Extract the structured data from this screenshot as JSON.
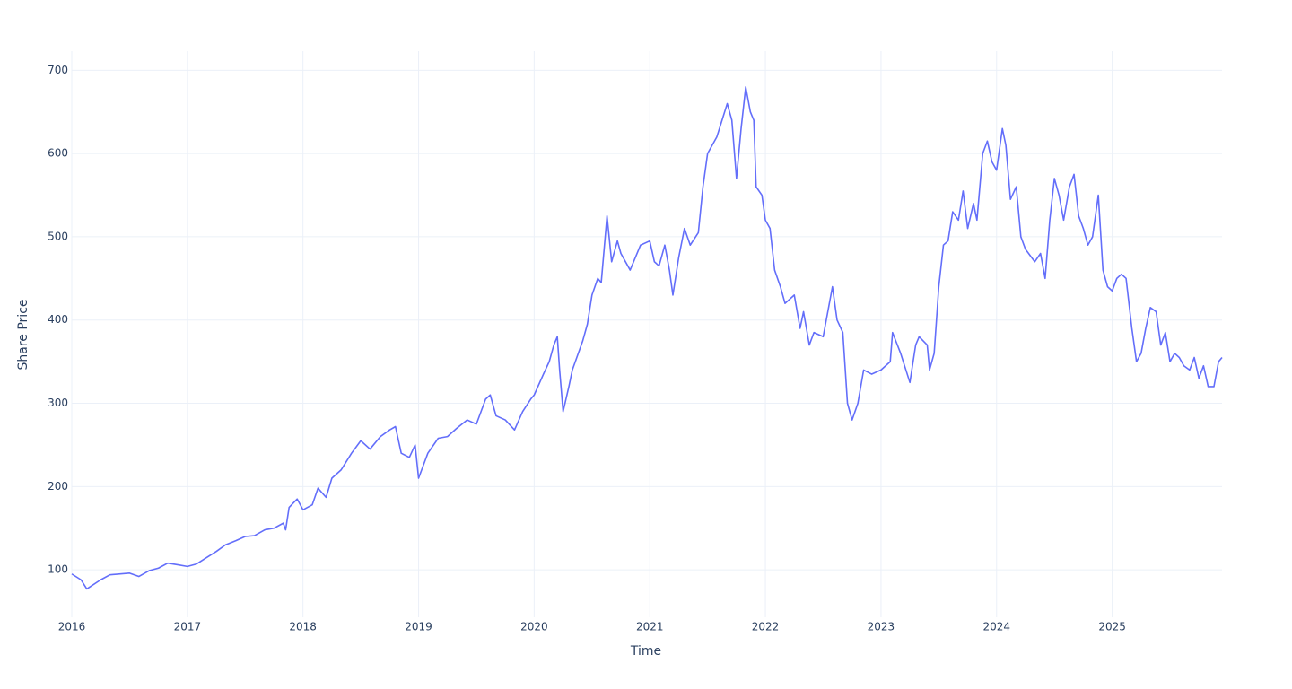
{
  "chart_data": {
    "type": "line",
    "x_label": "Time",
    "y_label": "Share Price",
    "color": "#636efa",
    "grid": true,
    "xlim": [
      2016,
      2025.95
    ],
    "ylim": [
      43,
      723
    ],
    "xticks": [
      2016,
      2017,
      2018,
      2019,
      2020,
      2021,
      2022,
      2023,
      2024,
      2025
    ],
    "yticks": [
      100,
      200,
      300,
      400,
      500,
      600,
      700
    ],
    "x": [
      2016.0,
      2016.08,
      2016.13,
      2016.25,
      2016.33,
      2016.5,
      2016.58,
      2016.67,
      2016.75,
      2016.83,
      2016.92,
      2017.0,
      2017.08,
      2017.17,
      2017.25,
      2017.33,
      2017.42,
      2017.5,
      2017.58,
      2017.67,
      2017.75,
      2017.83,
      2017.85,
      2017.88,
      2017.95,
      2018.0,
      2018.08,
      2018.13,
      2018.2,
      2018.25,
      2018.33,
      2018.42,
      2018.5,
      2018.58,
      2018.67,
      2018.75,
      2018.8,
      2018.85,
      2018.92,
      2018.97,
      2019.0,
      2019.08,
      2019.17,
      2019.25,
      2019.33,
      2019.42,
      2019.5,
      2019.58,
      2019.62,
      2019.67,
      2019.75,
      2019.83,
      2019.9,
      2019.97,
      2020.0,
      2020.08,
      2020.13,
      2020.17,
      2020.2,
      2020.22,
      2020.25,
      2020.3,
      2020.33,
      2020.42,
      2020.46,
      2020.5,
      2020.55,
      2020.58,
      2020.63,
      2020.67,
      2020.72,
      2020.75,
      2020.83,
      2020.92,
      2021.0,
      2021.04,
      2021.08,
      2021.13,
      2021.17,
      2021.2,
      2021.25,
      2021.3,
      2021.35,
      2021.42,
      2021.46,
      2021.5,
      2021.58,
      2021.67,
      2021.71,
      2021.75,
      2021.79,
      2021.83,
      2021.87,
      2021.9,
      2021.92,
      2021.97,
      2022.0,
      2022.04,
      2022.08,
      2022.13,
      2022.17,
      2022.25,
      2022.3,
      2022.33,
      2022.38,
      2022.42,
      2022.5,
      2022.58,
      2022.62,
      2022.67,
      2022.71,
      2022.75,
      2022.8,
      2022.85,
      2022.92,
      2023.0,
      2023.08,
      2023.1,
      2023.17,
      2023.25,
      2023.3,
      2023.33,
      2023.4,
      2023.42,
      2023.46,
      2023.5,
      2023.54,
      2023.58,
      2023.62,
      2023.67,
      2023.71,
      2023.75,
      2023.8,
      2023.83,
      2023.88,
      2023.92,
      2023.96,
      2024.0,
      2024.05,
      2024.08,
      2024.12,
      2024.17,
      2024.21,
      2024.25,
      2024.33,
      2024.38,
      2024.42,
      2024.46,
      2024.5,
      2024.54,
      2024.58,
      2024.63,
      2024.67,
      2024.71,
      2024.75,
      2024.79,
      2024.83,
      2024.88,
      2024.92,
      2024.96,
      2025.0,
      2025.04,
      2025.08,
      2025.12,
      2025.17,
      2025.21,
      2025.25,
      2025.29,
      2025.33,
      2025.38,
      2025.42,
      2025.46,
      2025.5,
      2025.54,
      2025.58,
      2025.62,
      2025.67,
      2025.71,
      2025.75,
      2025.79,
      2025.83,
      2025.88,
      2025.92,
      2025.95
    ],
    "values": [
      95,
      88,
      77,
      88,
      94,
      96,
      92,
      99,
      102,
      108,
      106,
      104,
      107,
      115,
      122,
      130,
      135,
      140,
      141,
      148,
      150,
      156,
      148,
      175,
      185,
      172,
      178,
      198,
      187,
      210,
      220,
      240,
      255,
      245,
      260,
      268,
      272,
      240,
      235,
      250,
      210,
      240,
      258,
      260,
      270,
      280,
      275,
      305,
      310,
      285,
      280,
      268,
      290,
      305,
      310,
      335,
      350,
      370,
      380,
      340,
      290,
      320,
      340,
      375,
      395,
      430,
      450,
      445,
      525,
      470,
      495,
      480,
      460,
      490,
      495,
      470,
      465,
      490,
      460,
      430,
      475,
      510,
      490,
      505,
      560,
      600,
      620,
      660,
      640,
      570,
      630,
      680,
      650,
      640,
      560,
      550,
      520,
      510,
      460,
      440,
      420,
      430,
      390,
      410,
      370,
      385,
      380,
      440,
      400,
      385,
      300,
      280,
      300,
      340,
      335,
      340,
      350,
      385,
      360,
      325,
      370,
      380,
      370,
      340,
      360,
      440,
      490,
      495,
      530,
      520,
      555,
      510,
      540,
      520,
      600,
      615,
      590,
      580,
      630,
      610,
      545,
      560,
      500,
      485,
      470,
      480,
      450,
      520,
      570,
      550,
      520,
      560,
      575,
      525,
      510,
      490,
      500,
      550,
      460,
      440,
      435,
      450,
      455,
      450,
      390,
      350,
      360,
      390,
      415,
      410,
      370,
      385,
      350,
      360,
      355,
      345,
      340,
      355,
      330,
      345,
      320,
      320,
      350,
      355
    ]
  }
}
